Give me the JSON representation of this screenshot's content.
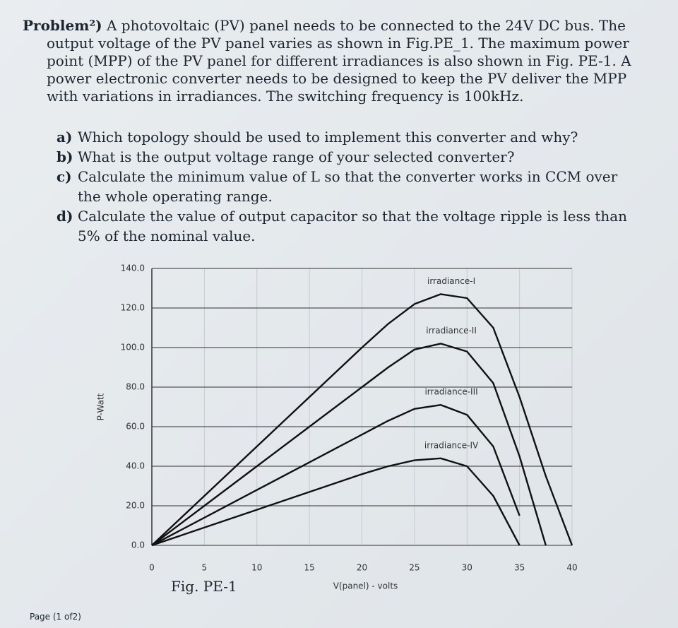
{
  "problem": {
    "label": "Problem²)",
    "text": "A photovoltaic (PV) panel needs to be connected to the 24V DC bus. The output voltage of the PV panel varies as shown in Fig.PE_1. The maximum power point (MPP) of the PV panel for different irradiances is also shown in Fig. PE-1. A power electronic converter needs to be designed to keep the PV deliver the MPP with variations in irradiances. The switching frequency is 100kHz."
  },
  "questions": [
    {
      "label": "a)",
      "text": "Which topology should be used to implement this converter and why?"
    },
    {
      "label": "b)",
      "text": "What is the output voltage range of your selected converter?"
    },
    {
      "label": "c)",
      "text": "Calculate the minimum value of L so that the converter works in CCM over the whole operating range."
    },
    {
      "label": "d)",
      "text": "Calculate the value of output capacitor so that the voltage ripple is less than 5% of the nominal value."
    }
  ],
  "figure": {
    "caption": "Fig. PE-1",
    "chart_data": {
      "type": "line",
      "x_label": "V(panel) - volts",
      "y_label": "P-Watt",
      "x": [
        0,
        5,
        10,
        15,
        20,
        22.5,
        25,
        27.5,
        30,
        32.5,
        35,
        37.5,
        40
      ],
      "series": [
        {
          "name": "irradiance-I",
          "color": "#111111",
          "values": [
            0,
            25,
            50,
            75,
            100,
            112,
            122,
            127,
            125,
            110,
            75,
            35,
            0
          ]
        },
        {
          "name": "irradiance-II",
          "color": "#111111",
          "values": [
            0,
            20,
            40,
            60,
            80,
            90,
            99,
            102,
            98,
            82,
            45,
            0,
            null
          ]
        },
        {
          "name": "irradiance-III",
          "color": "#111111",
          "values": [
            0,
            14,
            28,
            42,
            56,
            63,
            69,
            71,
            66,
            50,
            15,
            null,
            null
          ]
        },
        {
          "name": "irradiance-IV",
          "color": "#111111",
          "values": [
            0,
            9,
            18,
            27,
            36,
            40,
            43,
            44,
            40,
            25,
            0,
            null,
            null
          ]
        }
      ],
      "xlim": [
        0,
        40
      ],
      "xticks": [
        0,
        5,
        10,
        15,
        20,
        25,
        30,
        35,
        40
      ],
      "ylim": [
        0,
        140
      ],
      "yticks": [
        {
          "value": 0,
          "label": "0.0"
        },
        {
          "value": 20,
          "label": "20.0"
        },
        {
          "value": 40,
          "label": "40.0"
        },
        {
          "value": 60,
          "label": "60.0"
        },
        {
          "value": 80,
          "label": "80.0"
        },
        {
          "value": 100,
          "label": "100.0"
        },
        {
          "value": 120,
          "label": "120.0"
        },
        {
          "value": 140,
          "label": "140.0"
        }
      ],
      "grid": true
    }
  },
  "footer": "Page (1 of2)"
}
